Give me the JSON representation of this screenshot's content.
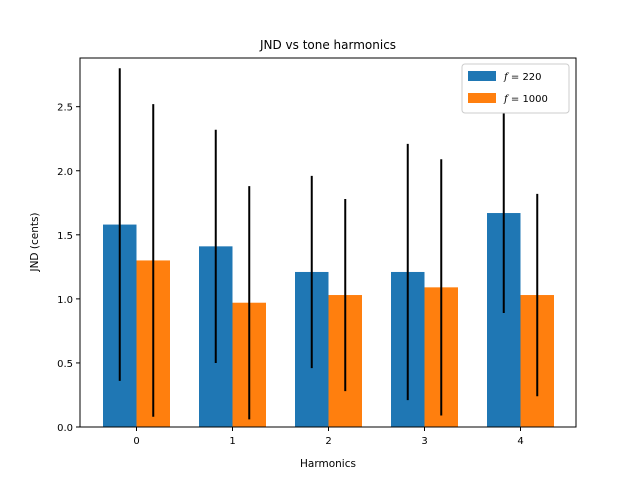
{
  "chart_data": {
    "type": "bar",
    "title": "JND vs tone harmonics",
    "xlabel": "Harmonics",
    "ylabel": "JND (cents)",
    "categories": [
      "0",
      "1",
      "2",
      "3",
      "4"
    ],
    "ylim": [
      0,
      2.88
    ],
    "yticks": [
      "0.0",
      "0.5",
      "1.0",
      "1.5",
      "2.0",
      "2.5"
    ],
    "grid": false,
    "legend_position": "top-right",
    "series": [
      {
        "name": "f = 220",
        "name_prefix": "f",
        "name_suffix": " = 220",
        "color": "#1f77b4",
        "values": [
          1.58,
          1.41,
          1.21,
          1.21,
          1.67
        ],
        "errors": [
          1.22,
          0.91,
          0.75,
          1.0,
          0.78
        ]
      },
      {
        "name": "f = 1000",
        "name_prefix": "f",
        "name_suffix": " = 1000",
        "color": "#ff7f0e",
        "values": [
          1.3,
          0.97,
          1.03,
          1.09,
          1.03
        ],
        "errors": [
          1.22,
          0.91,
          0.75,
          1.0,
          0.79
        ]
      }
    ],
    "error_bar_color": "#000000"
  }
}
